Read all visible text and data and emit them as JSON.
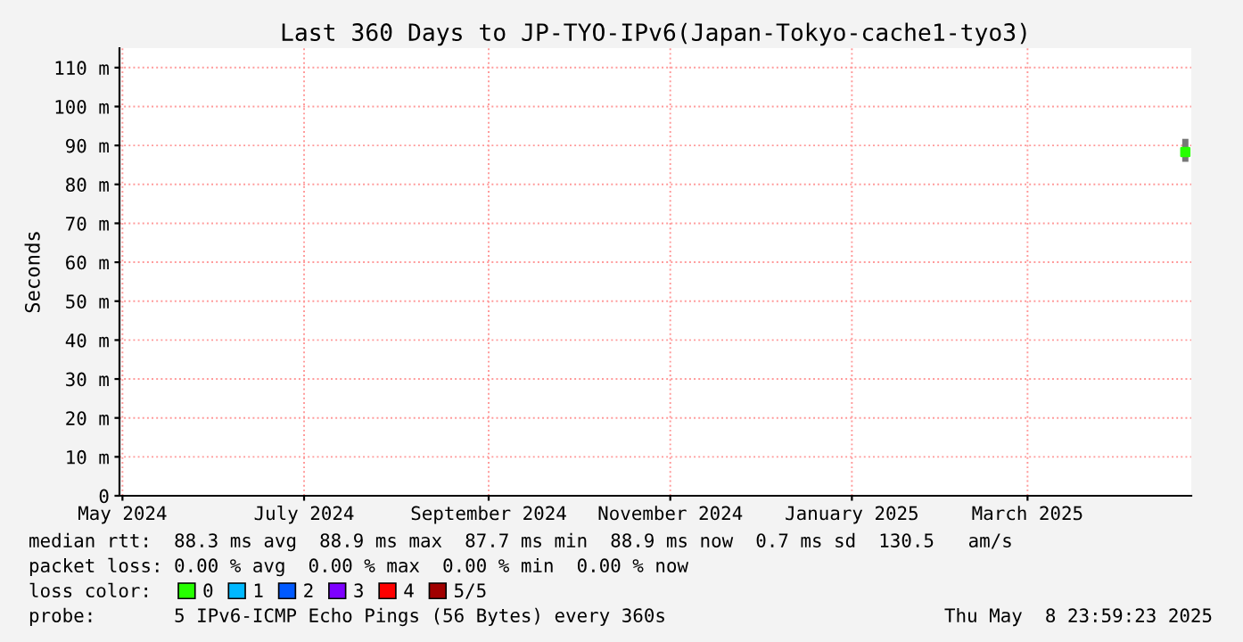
{
  "chart_data": {
    "type": "scatter",
    "title": "Last 360 Days to JP-TYO-IPv6(Japan-Tokyo-cache1-tyo3)",
    "ylabel": "Seconds",
    "xlim": [
      "2024-05-13T23:59",
      "2025-05-08T23:59"
    ],
    "xticks": [
      {
        "value": "2024-05-15",
        "label": "May 2024"
      },
      {
        "value": "2024-07-15",
        "label": "July 2024"
      },
      {
        "value": "2024-09-15",
        "label": "September 2024"
      },
      {
        "value": "2024-11-15",
        "label": "November 2024"
      },
      {
        "value": "2025-01-15",
        "label": "January 2025"
      },
      {
        "value": "2025-03-15",
        "label": "March 2025"
      }
    ],
    "ylim": [
      0,
      115
    ],
    "yticks": [
      0,
      {
        "value": 10,
        "label": "10 m"
      },
      {
        "value": 20,
        "label": "20 m"
      },
      {
        "value": 30,
        "label": "30 m"
      },
      {
        "value": 40,
        "label": "40 m"
      },
      {
        "value": 50,
        "label": "50 m"
      },
      {
        "value": 60,
        "label": "60 m"
      },
      {
        "value": 70,
        "label": "70 m"
      },
      {
        "value": 80,
        "label": "80 m"
      },
      {
        "value": 90,
        "label": "90 m"
      },
      {
        "value": 100,
        "label": "100 m"
      },
      {
        "value": 110,
        "label": "110 m"
      }
    ],
    "x": [
      "2025-05-07"
    ],
    "series": [
      {
        "name": "0",
        "color": "#26ff00",
        "values": [
          88.3
        ],
        "errors": [
          [
            85.8,
            91.7
          ]
        ]
      },
      {
        "name": "1",
        "color": "#00b8ff",
        "values": [
          null
        ]
      },
      {
        "name": "2",
        "color": "#0059ff",
        "values": [
          null
        ]
      },
      {
        "name": "3",
        "color": "#7e00ff",
        "values": [
          null
        ]
      },
      {
        "name": "4",
        "color": "#ff0000",
        "values": [
          null
        ]
      },
      {
        "name": "5/5",
        "color": "#a10000",
        "values": [
          null
        ]
      }
    ],
    "legend_title": "loss color:",
    "legend": "bottom",
    "marker": "square",
    "grid": true,
    "annotations": [
      "median rtt:  88.3 ms avg  88.9 ms max  87.7 ms min  88.9 ms now  0.7 ms sd  130.5   am/s",
      "packet loss: 0.00 % avg  0.00 % max  0.00 % min  0.00 % now",
      "probe:       5 IPv6-ICMP Echo Pings (56 Bytes) every 360s",
      "Thu May  8 23:59:23 2025"
    ]
  }
}
